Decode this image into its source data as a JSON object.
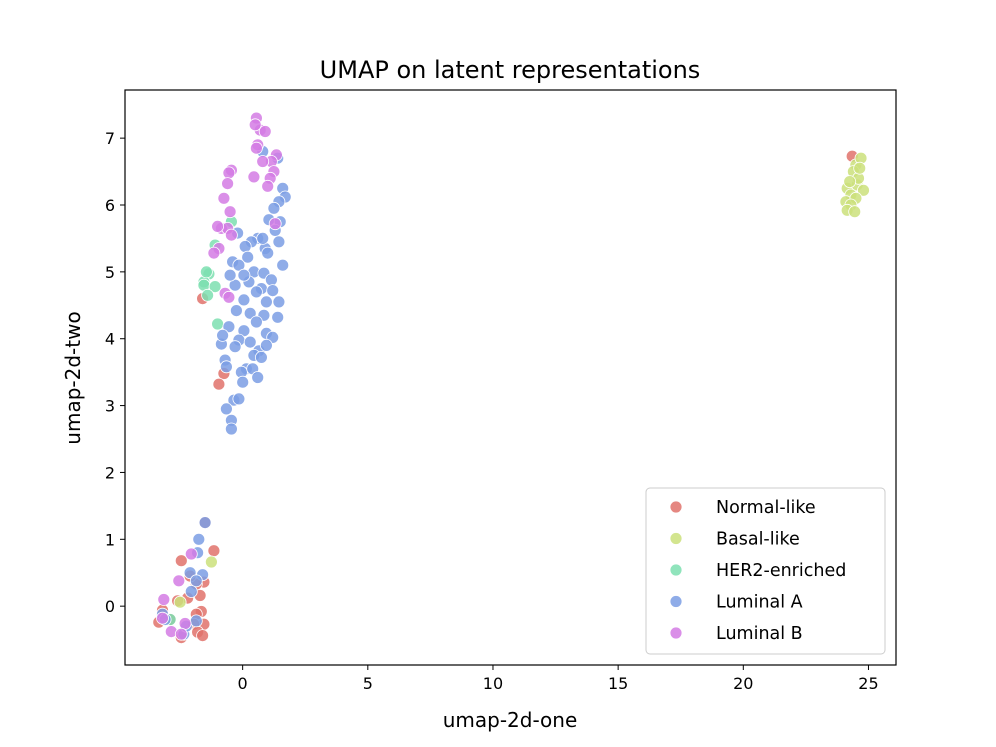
{
  "chart_data": {
    "type": "scatter",
    "title": "UMAP on latent representations",
    "xlabel": "umap-2d-one",
    "ylabel": "umap-2d-two",
    "xlim": [
      -4.7,
      26.1
    ],
    "ylim": [
      -0.88,
      7.72
    ],
    "xticks": [
      0,
      5,
      10,
      15,
      20,
      25
    ],
    "yticks": [
      0,
      1,
      2,
      3,
      4,
      5,
      6,
      7
    ],
    "grid": false,
    "legend_position": "lower-right",
    "series": [
      {
        "name": "Normal-like",
        "color": "#e1726b",
        "points": [
          [
            -1.5,
            1.25
          ],
          [
            -1.15,
            0.83
          ],
          [
            -2.45,
            0.68
          ],
          [
            -1.55,
            0.36
          ],
          [
            -1.85,
            0.33
          ],
          [
            -2.1,
            0.45
          ],
          [
            -1.7,
            0.16
          ],
          [
            -2.2,
            0.12
          ],
          [
            -1.65,
            -0.08
          ],
          [
            -1.85,
            -0.12
          ],
          [
            -1.55,
            -0.27
          ],
          [
            -1.95,
            -0.27
          ],
          [
            -1.8,
            -0.39
          ],
          [
            -1.6,
            -0.44
          ],
          [
            -2.45,
            -0.47
          ],
          [
            -3.35,
            -0.24
          ],
          [
            -3.2,
            -0.06
          ],
          [
            -1.6,
            4.6
          ],
          [
            -0.75,
            3.48
          ],
          [
            -0.95,
            3.32
          ],
          [
            24.35,
            6.73
          ],
          [
            -2.6,
            0.08
          ],
          [
            -2.9,
            -0.2
          ]
        ]
      },
      {
        "name": "Basal-like",
        "color": "#cbe07b",
        "points": [
          [
            -1.25,
            0.66
          ],
          [
            -2.5,
            0.06
          ],
          [
            24.5,
            6.6
          ],
          [
            24.7,
            6.7
          ],
          [
            24.4,
            6.5
          ],
          [
            24.15,
            6.25
          ],
          [
            24.55,
            6.3
          ],
          [
            24.8,
            6.22
          ],
          [
            24.3,
            6.15
          ],
          [
            24.1,
            6.05
          ],
          [
            24.5,
            6.1
          ],
          [
            24.3,
            6.0
          ],
          [
            24.15,
            5.92
          ],
          [
            24.45,
            5.9
          ],
          [
            24.6,
            6.4
          ],
          [
            24.25,
            6.35
          ],
          [
            24.65,
            6.55
          ]
        ]
      },
      {
        "name": "HER2-enriched",
        "color": "#7ddfb0",
        "points": [
          [
            -0.45,
            5.75
          ],
          [
            -1.1,
            5.4
          ],
          [
            -1.35,
            4.97
          ],
          [
            -1.55,
            4.85
          ],
          [
            -1.55,
            4.8
          ],
          [
            -1.1,
            4.78
          ],
          [
            -1.4,
            4.65
          ],
          [
            -1.0,
            4.22
          ],
          [
            -2.9,
            -0.2
          ],
          [
            -1.45,
            5.0
          ]
        ]
      },
      {
        "name": "Luminal A",
        "color": "#7b9ee4",
        "points": [
          [
            -1.8,
            0.8
          ],
          [
            -1.75,
            1.0
          ],
          [
            -1.6,
            0.47
          ],
          [
            -2.1,
            0.5
          ],
          [
            -1.85,
            0.38
          ],
          [
            -1.5,
            1.25
          ],
          [
            -2.05,
            0.22
          ],
          [
            -3.2,
            -0.12
          ],
          [
            -3.1,
            -0.2
          ],
          [
            -2.35,
            -0.42
          ],
          [
            -2.25,
            -0.3
          ],
          [
            -1.85,
            -0.22
          ],
          [
            0.8,
            6.8
          ],
          [
            1.4,
            6.7
          ],
          [
            1.6,
            6.25
          ],
          [
            1.7,
            6.12
          ],
          [
            1.45,
            6.05
          ],
          [
            1.25,
            5.95
          ],
          [
            1.05,
            5.78
          ],
          [
            1.5,
            5.75
          ],
          [
            1.3,
            5.62
          ],
          [
            0.6,
            5.5
          ],
          [
            1.45,
            5.45
          ],
          [
            0.9,
            5.35
          ],
          [
            1.0,
            5.28
          ],
          [
            0.35,
            5.45
          ],
          [
            0.1,
            5.38
          ],
          [
            0.8,
            5.5
          ],
          [
            -0.2,
            5.58
          ],
          [
            0.2,
            5.22
          ],
          [
            -0.4,
            5.15
          ],
          [
            -0.15,
            5.1
          ],
          [
            0.45,
            5.0
          ],
          [
            0.85,
            4.98
          ],
          [
            1.15,
            4.88
          ],
          [
            0.25,
            4.85
          ],
          [
            -0.3,
            4.8
          ],
          [
            0.75,
            4.75
          ],
          [
            1.2,
            4.72
          ],
          [
            0.55,
            4.7
          ],
          [
            0.05,
            4.58
          ],
          [
            0.95,
            4.55
          ],
          [
            1.45,
            4.55
          ],
          [
            -0.25,
            4.42
          ],
          [
            0.3,
            4.38
          ],
          [
            0.85,
            4.35
          ],
          [
            1.4,
            4.32
          ],
          [
            0.55,
            4.25
          ],
          [
            -0.55,
            4.18
          ],
          [
            0.05,
            4.12
          ],
          [
            0.95,
            4.08
          ],
          [
            1.2,
            4.02
          ],
          [
            -0.15,
            3.98
          ],
          [
            0.3,
            3.95
          ],
          [
            0.65,
            3.82
          ],
          [
            0.95,
            3.9
          ],
          [
            -0.3,
            3.88
          ],
          [
            0.45,
            3.75
          ],
          [
            0.75,
            3.72
          ],
          [
            -0.7,
            3.68
          ],
          [
            -0.85,
            3.92
          ],
          [
            -0.65,
            3.58
          ],
          [
            0.15,
            3.55
          ],
          [
            -0.05,
            3.5
          ],
          [
            0.4,
            3.55
          ],
          [
            0.6,
            3.42
          ],
          [
            0.0,
            3.35
          ],
          [
            -0.35,
            3.08
          ],
          [
            -0.15,
            3.1
          ],
          [
            -0.65,
            2.95
          ],
          [
            -0.45,
            2.78
          ],
          [
            -0.45,
            2.65
          ],
          [
            -0.8,
            4.05
          ],
          [
            1.6,
            5.1
          ],
          [
            -0.5,
            4.95
          ],
          [
            0.05,
            4.95
          ]
        ]
      },
      {
        "name": "Luminal B",
        "color": "#d47be4",
        "points": [
          [
            0.55,
            7.3
          ],
          [
            0.7,
            7.12
          ],
          [
            0.9,
            7.1
          ],
          [
            0.5,
            7.2
          ],
          [
            1.35,
            6.75
          ],
          [
            1.15,
            6.65
          ],
          [
            0.6,
            6.9
          ],
          [
            0.55,
            6.85
          ],
          [
            0.8,
            6.65
          ],
          [
            1.25,
            6.5
          ],
          [
            1.1,
            6.4
          ],
          [
            0.45,
            6.42
          ],
          [
            1.0,
            6.28
          ],
          [
            -0.45,
            6.52
          ],
          [
            -0.55,
            6.48
          ],
          [
            -0.6,
            6.32
          ],
          [
            -0.75,
            6.1
          ],
          [
            -0.5,
            5.9
          ],
          [
            -0.85,
            5.65
          ],
          [
            -0.6,
            5.65
          ],
          [
            -0.95,
            5.35
          ],
          [
            -1.15,
            5.28
          ],
          [
            -1.0,
            5.68
          ],
          [
            -0.45,
            5.55
          ],
          [
            -0.7,
            4.68
          ],
          [
            -0.55,
            4.62
          ],
          [
            1.3,
            5.72
          ],
          [
            -2.55,
            0.38
          ],
          [
            -2.05,
            0.78
          ],
          [
            -3.15,
            0.1
          ],
          [
            -2.85,
            -0.38
          ],
          [
            -2.3,
            -0.26
          ],
          [
            -2.45,
            -0.42
          ],
          [
            -3.2,
            -0.18
          ]
        ]
      }
    ]
  }
}
